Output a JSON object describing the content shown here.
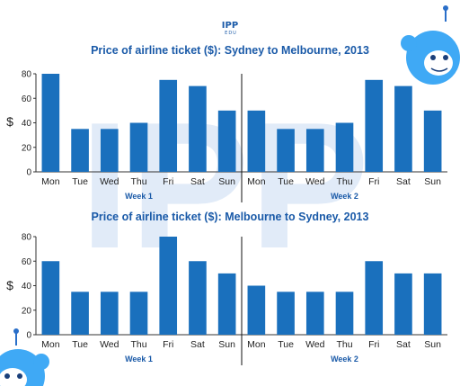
{
  "logo": {
    "text": "IPP",
    "subtext": "EDU"
  },
  "colors": {
    "bar": "#1a70bd",
    "title": "#1a5aa8",
    "axis": "#333333",
    "watermark": "#c9dcf3"
  },
  "chart_data": [
    {
      "type": "bar",
      "title": "Price of airline ticket ($): Sydney to Melbourne, 2013",
      "ylabel": "$",
      "ylim": [
        0,
        80
      ],
      "yticks": [
        "0",
        "20",
        "40",
        "60",
        "80"
      ],
      "categories": [
        "Mon",
        "Tue",
        "Wed",
        "Thu",
        "Fri",
        "Sat",
        "Sun",
        "Mon",
        "Tue",
        "Wed",
        "Thu",
        "Fri",
        "Sat",
        "Sun"
      ],
      "groups": [
        "Week 1",
        "Week 2"
      ],
      "values": [
        80,
        35,
        35,
        40,
        75,
        70,
        50,
        50,
        35,
        35,
        40,
        75,
        70,
        50
      ]
    },
    {
      "type": "bar",
      "title": "Price of airline ticket ($): Melbourne to Sydney, 2013",
      "ylabel": "$",
      "ylim": [
        0,
        80
      ],
      "yticks": [
        "0",
        "20",
        "40",
        "60",
        "80"
      ],
      "categories": [
        "Mon",
        "Tue",
        "Wed",
        "Thu",
        "Fri",
        "Sat",
        "Sun",
        "Mon",
        "Tue",
        "Wed",
        "Thu",
        "Fri",
        "Sat",
        "Sun"
      ],
      "groups": [
        "Week 1",
        "Week 2"
      ],
      "values": [
        60,
        35,
        35,
        35,
        80,
        60,
        50,
        40,
        35,
        35,
        35,
        60,
        50,
        50
      ]
    }
  ]
}
